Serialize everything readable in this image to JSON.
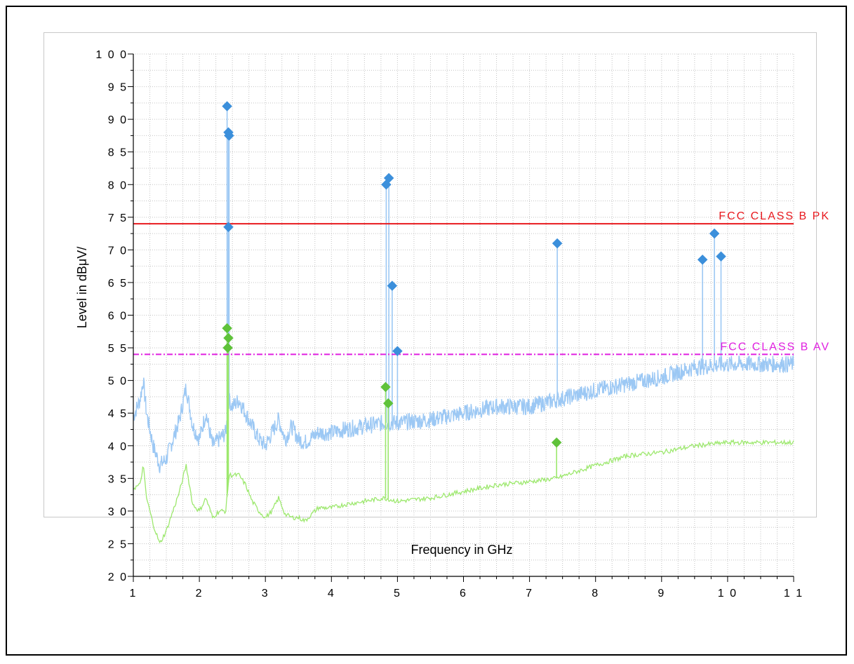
{
  "chart_data": {
    "type": "line",
    "xlabel": "Frequency in GHz",
    "ylabel": "Level in dBμV/",
    "xlim": [
      1,
      11
    ],
    "ylim": [
      20,
      100
    ],
    "x_ticks": [
      "1",
      "2",
      "3",
      "4",
      "5",
      "6",
      "7",
      "8",
      "9",
      "1 0",
      "1 1"
    ],
    "y_ticks": [
      "1 0 0",
      "9 5",
      "9 0",
      "8 5",
      "8 0",
      "7 5",
      "7 0",
      "6 5",
      "6 0",
      "5 5",
      "5 0",
      "4 5",
      "4 0",
      "3 5",
      "3 0",
      "2 5",
      "2 0"
    ],
    "grid": true,
    "limit_lines": [
      {
        "name": "FCC CLASS B PK",
        "value": 74,
        "color": "#e8191e",
        "style": "solid"
      },
      {
        "name": "FCC CLASS B AV",
        "value": 54,
        "color": "#e020e0",
        "style": "dashdot"
      }
    ],
    "series": [
      {
        "color": "#9cc8f4",
        "style": "noisy",
        "x": [
          1.0,
          1.1,
          1.15,
          1.2,
          1.3,
          1.4,
          1.5,
          1.6,
          1.7,
          1.8,
          1.9,
          2.0,
          2.1,
          2.2,
          2.3,
          2.4,
          2.45,
          2.5,
          2.6,
          2.7,
          2.8,
          2.9,
          3.0,
          3.1,
          3.2,
          3.3,
          3.4,
          3.5,
          3.6,
          3.8,
          4.0,
          4.2,
          4.5,
          4.8,
          5.0,
          5.5,
          6.0,
          6.5,
          7.0,
          7.4,
          8.0,
          8.5,
          9.0,
          9.5,
          10.0,
          10.5,
          11.0
        ],
        "y": [
          44.5,
          47.0,
          50.0,
          45.0,
          40.0,
          37.0,
          38.0,
          41.0,
          44.0,
          49.0,
          43.0,
          41.0,
          45.0,
          40.0,
          41.0,
          42.0,
          47.0,
          46.0,
          47.0,
          45.0,
          43.0,
          41.0,
          40.0,
          42.0,
          44.0,
          41.0,
          43.0,
          41.0,
          40.5,
          42.0,
          42.0,
          42.5,
          43.0,
          43.5,
          43.5,
          44.0,
          45.0,
          46.0,
          46.0,
          47.0,
          48.5,
          49.5,
          50.5,
          52.0,
          52.5,
          52.5,
          52.5
        ]
      },
      {
        "color": "#9de86e",
        "style": "smooth",
        "x": [
          1.0,
          1.1,
          1.15,
          1.2,
          1.3,
          1.4,
          1.5,
          1.6,
          1.7,
          1.8,
          1.9,
          2.0,
          2.1,
          2.2,
          2.3,
          2.4,
          2.45,
          2.5,
          2.6,
          2.7,
          2.8,
          2.9,
          3.0,
          3.1,
          3.2,
          3.3,
          3.4,
          3.5,
          3.6,
          3.8,
          4.0,
          4.2,
          4.5,
          4.8,
          5.0,
          5.5,
          6.0,
          6.5,
          7.0,
          7.4,
          8.0,
          8.5,
          9.0,
          9.5,
          10.0,
          10.5,
          11.0
        ],
        "y": [
          33.5,
          34.0,
          37.0,
          32.0,
          28.0,
          25.0,
          27.0,
          30.0,
          33.0,
          37.0,
          31.0,
          30.0,
          32.0,
          29.0,
          30.0,
          30.0,
          35.5,
          35.5,
          35.5,
          34.0,
          31.5,
          30.0,
          29.0,
          30.0,
          32.0,
          29.5,
          29.0,
          29.0,
          28.5,
          30.5,
          30.5,
          31.0,
          31.5,
          32.0,
          31.5,
          32.0,
          33.0,
          34.0,
          34.5,
          35.0,
          37.0,
          38.5,
          39.0,
          40.0,
          40.5,
          40.5,
          40.5
        ]
      }
    ],
    "spikes": [
      {
        "series": 0,
        "x": 2.42,
        "y": 92.0
      },
      {
        "series": 0,
        "x": 2.44,
        "y": 88.0
      },
      {
        "series": 0,
        "x": 2.45,
        "y": 87.5
      },
      {
        "series": 0,
        "x": 2.44,
        "y": 73.5
      },
      {
        "series": 0,
        "x": 4.83,
        "y": 80.0
      },
      {
        "series": 0,
        "x": 4.87,
        "y": 81.0
      },
      {
        "series": 0,
        "x": 4.92,
        "y": 64.5
      },
      {
        "series": 0,
        "x": 5.0,
        "y": 54.5
      },
      {
        "series": 0,
        "x": 7.42,
        "y": 71.0
      },
      {
        "series": 0,
        "x": 9.62,
        "y": 68.5
      },
      {
        "series": 0,
        "x": 9.8,
        "y": 72.5
      },
      {
        "series": 0,
        "x": 9.9,
        "y": 69.0
      },
      {
        "series": 1,
        "x": 2.42,
        "y": 58.0
      },
      {
        "series": 1,
        "x": 2.44,
        "y": 56.5
      },
      {
        "series": 1,
        "x": 2.43,
        "y": 55.0
      },
      {
        "series": 1,
        "x": 4.82,
        "y": 49.0
      },
      {
        "series": 1,
        "x": 4.86,
        "y": 46.5
      },
      {
        "series": 1,
        "x": 7.41,
        "y": 40.5
      }
    ],
    "markers": [
      {
        "x": 2.42,
        "y": 92.0,
        "color": "#3b8fdb"
      },
      {
        "x": 2.44,
        "y": 88.0,
        "color": "#3b8fdb"
      },
      {
        "x": 2.45,
        "y": 87.5,
        "color": "#3b8fdb"
      },
      {
        "x": 2.44,
        "y": 73.5,
        "color": "#3b8fdb"
      },
      {
        "x": 4.83,
        "y": 80.0,
        "color": "#3b8fdb"
      },
      {
        "x": 4.87,
        "y": 81.0,
        "color": "#3b8fdb"
      },
      {
        "x": 4.92,
        "y": 64.5,
        "color": "#3b8fdb"
      },
      {
        "x": 5.0,
        "y": 54.5,
        "color": "#3b8fdb"
      },
      {
        "x": 7.42,
        "y": 71.0,
        "color": "#3b8fdb"
      },
      {
        "x": 9.62,
        "y": 68.5,
        "color": "#3b8fdb"
      },
      {
        "x": 9.8,
        "y": 72.5,
        "color": "#3b8fdb"
      },
      {
        "x": 9.9,
        "y": 69.0,
        "color": "#3b8fdb"
      },
      {
        "x": 2.42,
        "y": 58.0,
        "color": "#5fc23a"
      },
      {
        "x": 2.44,
        "y": 56.5,
        "color": "#5fc23a"
      },
      {
        "x": 2.43,
        "y": 55.0,
        "color": "#5fc23a"
      },
      {
        "x": 4.82,
        "y": 49.0,
        "color": "#5fc23a"
      },
      {
        "x": 4.86,
        "y": 46.5,
        "color": "#5fc23a"
      },
      {
        "x": 7.41,
        "y": 40.5,
        "color": "#5fc23a"
      }
    ]
  }
}
